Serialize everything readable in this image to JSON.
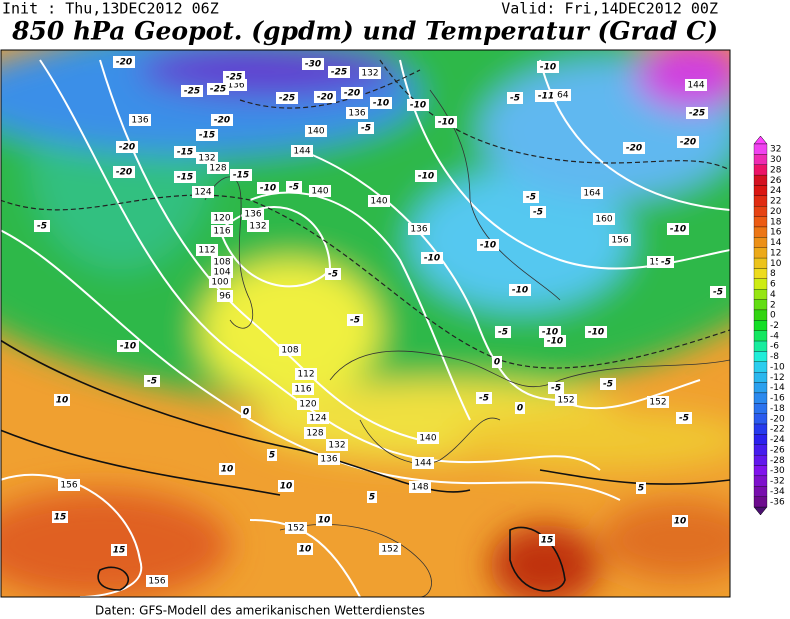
{
  "header": {
    "init": "Init : Thu,13DEC2012 06Z",
    "valid": "Valid: Fri,14DEC2012 00Z",
    "title": "850 hPa Geopot. (gpdm) und Temperatur (Grad C)"
  },
  "map": {
    "geopotential_labels": [
      132,
      136,
      164,
      144,
      136,
      136,
      140,
      144,
      140,
      128,
      132,
      124,
      120,
      116,
      112,
      108,
      104,
      100,
      96,
      136,
      132,
      140,
      136,
      164,
      160,
      156,
      152,
      108,
      112,
      116,
      120,
      124,
      128,
      132,
      136,
      140,
      144,
      148,
      152,
      152,
      156,
      156,
      152,
      152
    ],
    "temperature_labels": [
      -20,
      -25,
      -30,
      -25,
      -25,
      -25,
      -25,
      -20,
      -20,
      -20,
      -15,
      -20,
      -15,
      -20,
      -15,
      -15,
      -10,
      -5,
      -5,
      -10,
      -10,
      -10,
      -5,
      -10,
      -11,
      -10,
      -10,
      -10,
      -10,
      -5,
      -5,
      -10,
      -5,
      -5,
      -20,
      -20,
      -25,
      -5,
      -10,
      -5,
      -5,
      -5,
      -5,
      -10,
      -10,
      -10,
      0,
      -5,
      0,
      -5,
      -5,
      -5,
      10,
      10,
      10,
      5,
      5,
      10,
      10,
      15,
      15,
      15,
      5,
      10,
      0
    ]
  },
  "colorbar": {
    "labels": [
      32,
      30,
      28,
      26,
      24,
      22,
      20,
      18,
      16,
      14,
      12,
      10,
      8,
      6,
      4,
      2,
      0,
      -2,
      -4,
      -6,
      -8,
      -10,
      -12,
      -14,
      -16,
      -18,
      -20,
      -22,
      -24,
      -26,
      -28,
      -30,
      -32,
      -34,
      -36
    ]
  },
  "footer": "Daten: GFS-Modell des amerikanischen Wetterdienstes"
}
